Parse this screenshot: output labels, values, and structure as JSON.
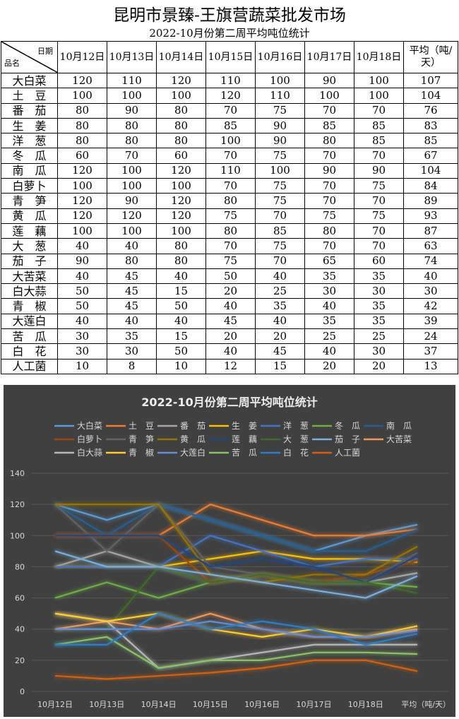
{
  "title": "昆明市景臻-王旗营蔬菜批发市场",
  "subtitle": "2022-10月份第二周平均吨位统计",
  "table": {
    "corner_top": "日期",
    "corner_bottom": "品名",
    "columns": [
      "10月12日",
      "10月13日",
      "10月14日",
      "10月15日",
      "10月16日",
      "10月17日",
      "10月18日",
      "平均（吨/天）"
    ],
    "rows": [
      {
        "name": "大白菜",
        "values": [
          120,
          110,
          120,
          110,
          100,
          90,
          100,
          107
        ]
      },
      {
        "name": "土　豆",
        "values": [
          100,
          100,
          100,
          120,
          110,
          100,
          100,
          104
        ]
      },
      {
        "name": "番　茄",
        "values": [
          80,
          90,
          80,
          70,
          75,
          70,
          70,
          76
        ]
      },
      {
        "name": "生　姜",
        "values": [
          80,
          80,
          80,
          85,
          90,
          85,
          85,
          83
        ]
      },
      {
        "name": "洋　葱",
        "values": [
          80,
          80,
          80,
          100,
          90,
          80,
          85,
          85
        ]
      },
      {
        "name": "冬　瓜",
        "values": [
          60,
          70,
          60,
          70,
          75,
          70,
          70,
          67
        ]
      },
      {
        "name": "南　瓜",
        "values": [
          120,
          100,
          120,
          110,
          100,
          90,
          90,
          104
        ]
      },
      {
        "name": "白萝卜",
        "values": [
          100,
          100,
          100,
          70,
          75,
          70,
          75,
          84
        ]
      },
      {
        "name": "青　笋",
        "values": [
          120,
          90,
          120,
          80,
          75,
          70,
          70,
          89
        ]
      },
      {
        "name": "黄　瓜",
        "values": [
          120,
          120,
          120,
          75,
          70,
          75,
          75,
          93
        ]
      },
      {
        "name": "莲　藕",
        "values": [
          100,
          100,
          100,
          80,
          85,
          80,
          70,
          87
        ]
      },
      {
        "name": "大　葱",
        "values": [
          40,
          40,
          80,
          70,
          75,
          70,
          70,
          63
        ]
      },
      {
        "name": "茄　子",
        "values": [
          90,
          80,
          80,
          75,
          70,
          65,
          60,
          74
        ]
      },
      {
        "name": "大苦菜",
        "values": [
          40,
          45,
          40,
          50,
          40,
          35,
          35,
          40
        ]
      },
      {
        "name": "白大蒜",
        "values": [
          50,
          45,
          15,
          20,
          25,
          30,
          30,
          30
        ]
      },
      {
        "name": "青　椒",
        "values": [
          50,
          45,
          50,
          40,
          35,
          40,
          35,
          42
        ]
      },
      {
        "name": "大莲白",
        "values": [
          40,
          40,
          40,
          45,
          40,
          35,
          35,
          39
        ]
      },
      {
        "name": "苦　瓜",
        "values": [
          30,
          35,
          15,
          20,
          20,
          25,
          25,
          24
        ]
      },
      {
        "name": "白　花",
        "values": [
          30,
          30,
          50,
          40,
          45,
          40,
          30,
          37
        ]
      },
      {
        "name": "人工菌",
        "values": [
          10,
          8,
          10,
          12,
          15,
          20,
          20,
          13
        ]
      }
    ]
  },
  "chart_data": {
    "type": "line",
    "title": "2022-10月份第二周平均吨位统计",
    "categories": [
      "10月12日",
      "10月13日",
      "10月14日",
      "10月15日",
      "10月16日",
      "10月17日",
      "10月18日",
      "平均（吨/天）"
    ],
    "ylim": [
      0,
      140
    ],
    "yticks": [
      "0",
      "20",
      "40",
      "60",
      "80",
      "100",
      "120",
      "140"
    ],
    "grid": true,
    "legend_position": "top",
    "background": "#404040",
    "colors": [
      "#5B9BD5",
      "#ED7D31",
      "#A5A5A5",
      "#FFC000",
      "#4472C4",
      "#70AD47",
      "#255E91",
      "#9E480E",
      "#636363",
      "#997300",
      "#264478",
      "#43682B",
      "#7CAFDD",
      "#F1975A",
      "#B7B7B7",
      "#FFCD33",
      "#698ED0",
      "#8CC168",
      "#327DC2",
      "#D26012"
    ],
    "series_from": "table.rows"
  }
}
